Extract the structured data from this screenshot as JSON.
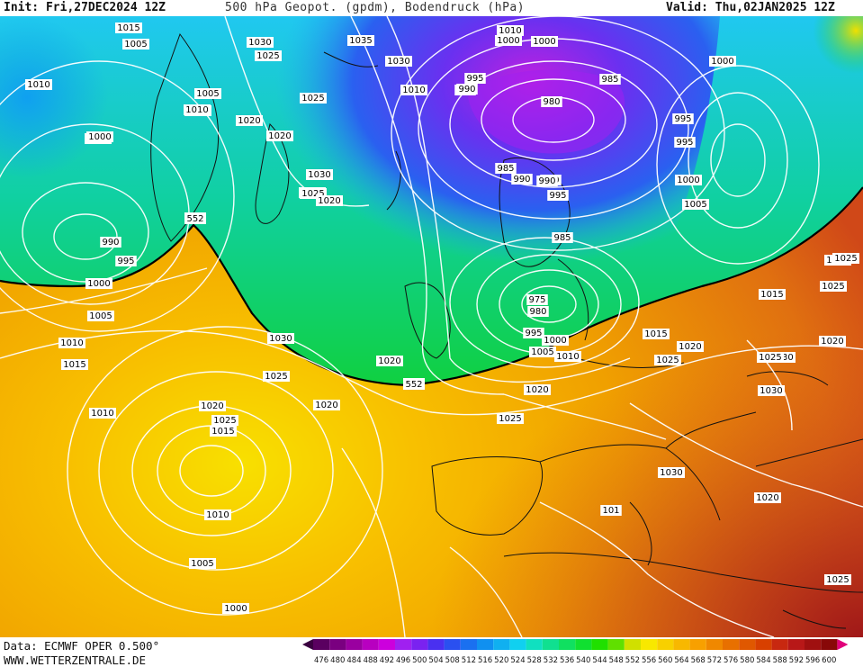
{
  "header": {
    "init": "Init: Fri,27DEC2024 12Z",
    "title": "500 hPa Geopot. (gpdm), Bodendruck (hPa)",
    "valid": "Valid: Thu,02JAN2025 12Z"
  },
  "footer": {
    "data_source": "Data: ECMWF OPER 0.500°",
    "url": "WWW.WETTERZENTRALE.DE"
  },
  "map": {
    "contour_552_labels": [
      "552",
      "552"
    ],
    "isobar_labels": [
      "1015",
      "1005",
      "1010",
      "1030",
      "1025",
      "1035",
      "1030",
      "1005",
      "1010",
      "1005",
      "1000",
      "1020",
      "1010",
      "1020",
      "1025",
      "1025",
      "990",
      "995",
      "985",
      "980",
      "1000",
      "1000",
      "995",
      "995",
      "990",
      "1010",
      "1000",
      "1030",
      "1025",
      "1020",
      "1000",
      "1005",
      "985",
      "990",
      "990",
      "995",
      "1010",
      "990",
      "995",
      "1000",
      "975",
      "980",
      "985",
      "990",
      "995",
      "1000",
      "1005",
      "1010",
      "1005",
      "1030",
      "1020",
      "1010",
      "1015",
      "1020",
      "1015",
      "1025",
      "1020",
      "1025",
      "1020",
      "1030",
      "1025",
      "1020",
      "1025",
      "1015",
      "1010",
      "1005",
      "1000",
      "1010",
      "1015",
      "1030",
      "1030",
      "1025",
      "1020",
      "1025",
      "1025",
      "101",
      "1020",
      "1025",
      "1030"
    ]
  },
  "legend": {
    "values": [
      "476",
      "480",
      "484",
      "488",
      "492",
      "496",
      "500",
      "504",
      "508",
      "512",
      "516",
      "520",
      "524",
      "528",
      "532",
      "536",
      "540",
      "544",
      "548",
      "552",
      "556",
      "560",
      "564",
      "568",
      "572",
      "576",
      "580",
      "584",
      "588",
      "592",
      "596",
      "600"
    ],
    "colors": [
      "#5a0060",
      "#7a0080",
      "#9a00a0",
      "#b800c0",
      "#cc00dd",
      "#a020f0",
      "#7a22f0",
      "#4a30f0",
      "#2a50f0",
      "#1a70f0",
      "#1090f0",
      "#10b0f0",
      "#10d0f0",
      "#10e0c0",
      "#10e090",
      "#10e060",
      "#10e030",
      "#20e000",
      "#60e000",
      "#d0e000",
      "#f8e800",
      "#f8d000",
      "#f8b800",
      "#f8a000",
      "#f08800",
      "#e87000",
      "#e05800",
      "#d84000",
      "#c82810",
      "#b81818",
      "#a01010",
      "#880808"
    ],
    "end_colors": {
      "left": "#3a0040",
      "right": "#e0007a"
    }
  }
}
